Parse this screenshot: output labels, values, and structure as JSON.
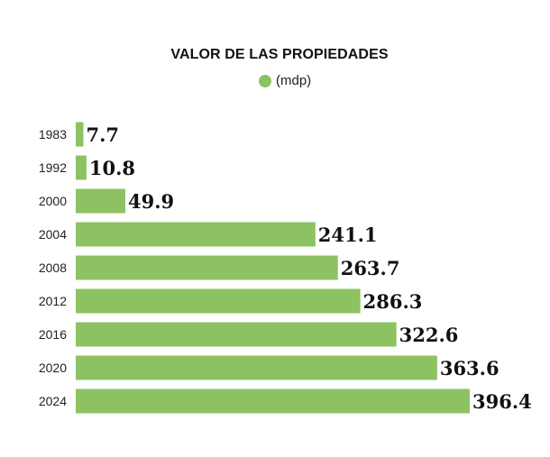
{
  "chart_data": {
    "type": "bar",
    "orientation": "horizontal",
    "title": "VALOR DE LAS PROPIEDADES",
    "legend": [
      {
        "name": "(mdp)",
        "color": "#8dc262"
      }
    ],
    "legend_position": "top-center",
    "categories": [
      "1983",
      "1992",
      "2000",
      "2004",
      "2008",
      "2012",
      "2016",
      "2020",
      "2024"
    ],
    "values": [
      7.7,
      10.8,
      49.9,
      241.1,
      263.7,
      286.3,
      322.6,
      363.6,
      396.4
    ],
    "value_labels": [
      "7.7",
      "10.8",
      "49.9",
      "241.1",
      "263.7",
      "286.3",
      "322.6",
      "363.6",
      "396.4"
    ],
    "bar_color": "#8dc262",
    "grid": false
  }
}
